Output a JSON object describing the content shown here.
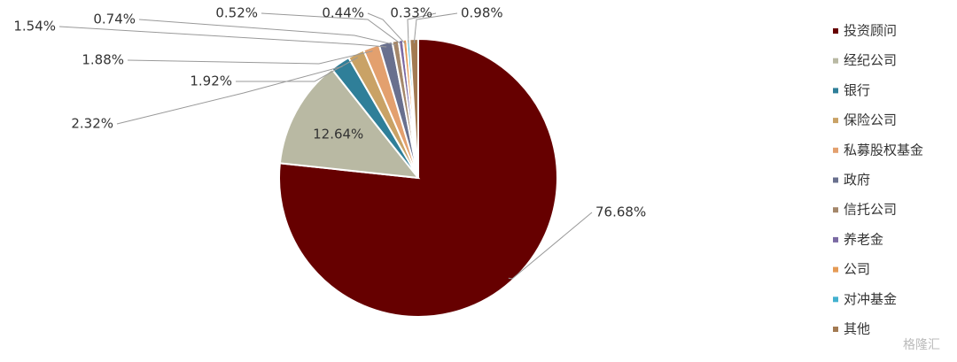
{
  "chart_data": {
    "type": "pie",
    "categories": [
      "投资顾问",
      "经纪公司",
      "银行",
      "保险公司",
      "私募股权基金",
      "政府",
      "信托公司",
      "养老金",
      "公司",
      "对冲基金",
      "其他"
    ],
    "values": [
      76.68,
      12.64,
      2.32,
      1.92,
      1.88,
      1.54,
      0.74,
      0.52,
      0.44,
      0.33,
      0.98
    ],
    "value_labels": [
      "76.68%",
      "12.64%",
      "2.32%",
      "1.92%",
      "1.88%",
      "1.54%",
      "0.74%",
      "0.52%",
      "0.44%",
      "0.33%",
      "0.98%"
    ],
    "colors": [
      "#660000",
      "#b9b9a3",
      "#2f7f99",
      "#c9a266",
      "#e3a06e",
      "#69708e",
      "#a4876a",
      "#7b6aa3",
      "#e59a55",
      "#43b1cf",
      "#a37a52"
    ],
    "legend": "right",
    "watermark": "格隆汇"
  }
}
